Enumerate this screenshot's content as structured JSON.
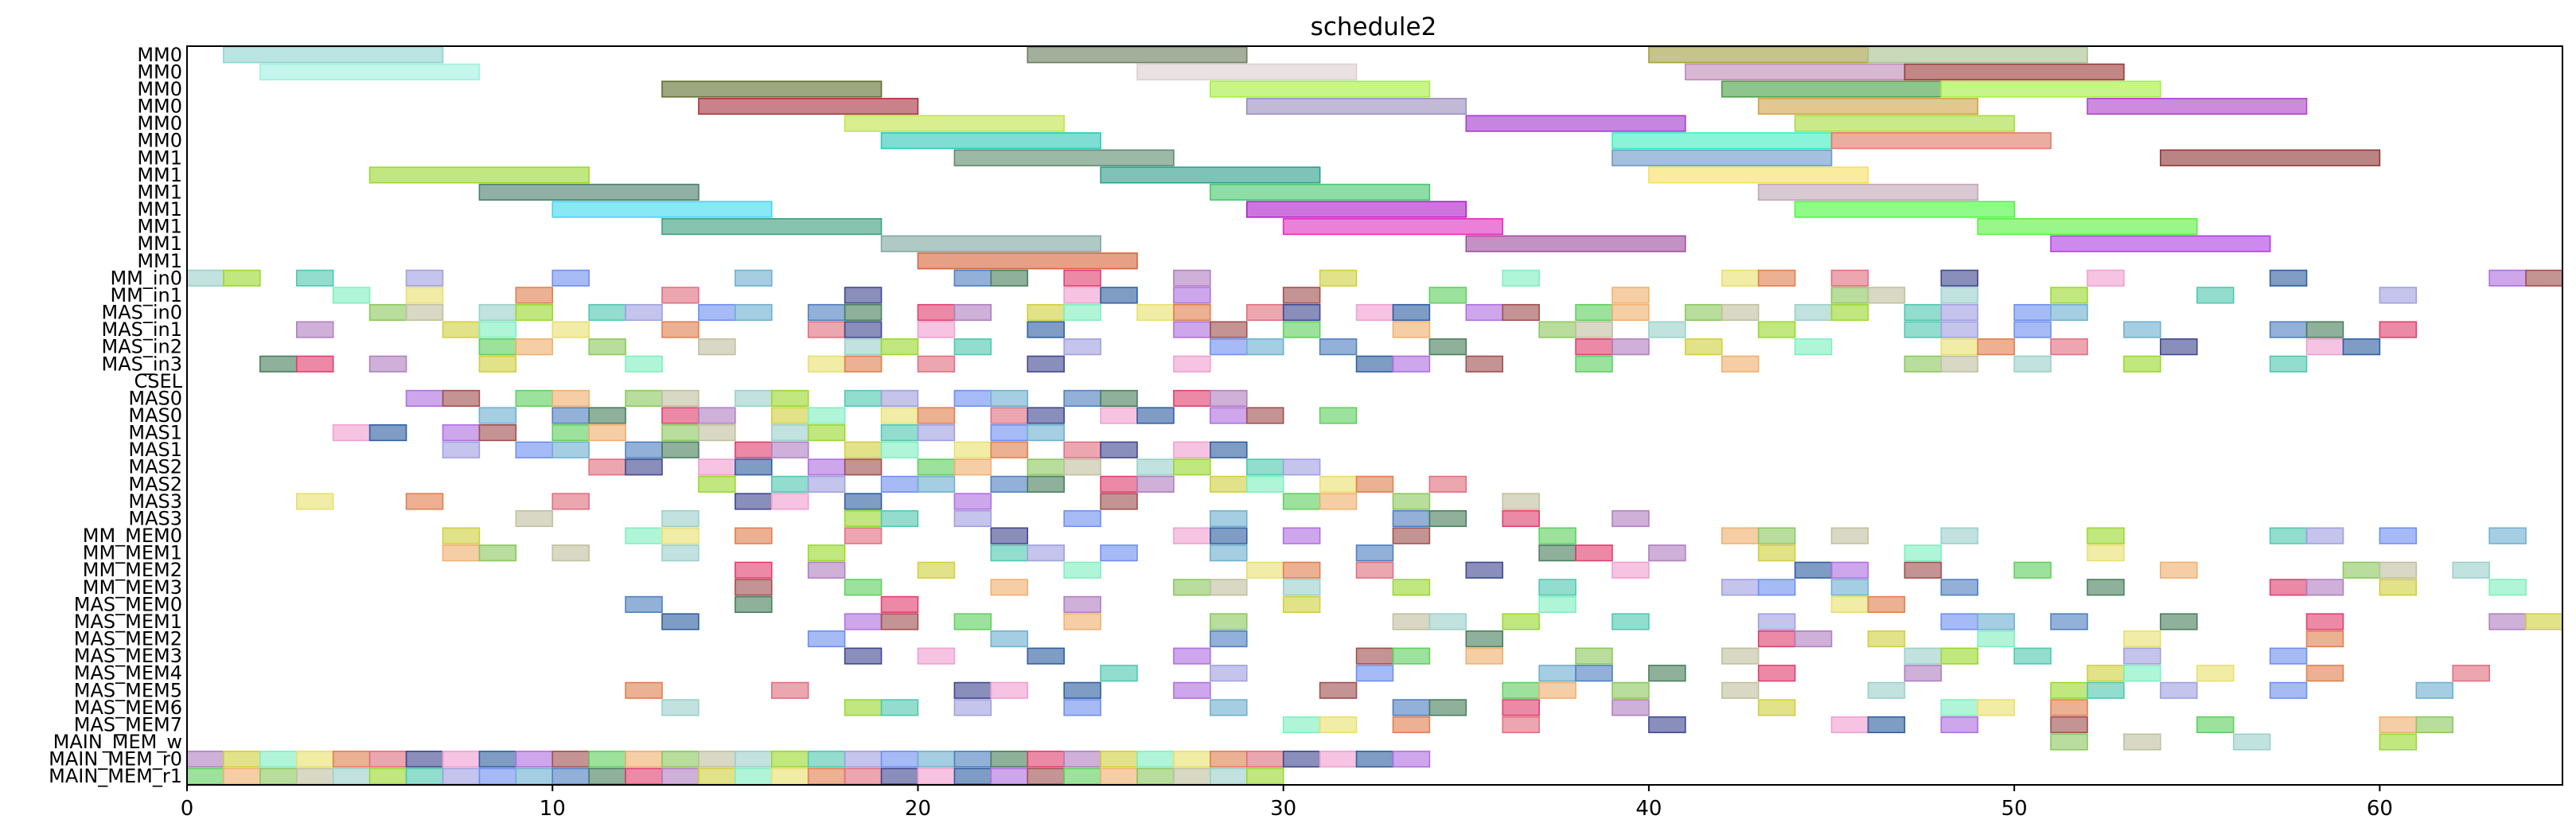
{
  "chart_data": {
    "type": "gantt",
    "title": "schedule2",
    "xlim": [
      0,
      65
    ],
    "x_ticks": [
      0,
      10,
      20,
      30,
      40,
      50,
      60
    ],
    "grid": false,
    "rows": [
      "MM0",
      "MM0",
      "MM0",
      "MM0",
      "MM0",
      "MM0",
      "MM1",
      "MM1",
      "MM1",
      "MM1",
      "MM1",
      "MM1",
      "MM1",
      "MM_in0",
      "MM_in1",
      "MAS_in0",
      "MAS_in1",
      "MAS_in2",
      "MAS_in3",
      "CSEL",
      "MAS0",
      "MAS0",
      "MAS1",
      "MAS1",
      "MAS2",
      "MAS2",
      "MAS3",
      "MAS3",
      "MM_MEM0",
      "MM_MEM1",
      "MM_MEM2",
      "MM_MEM3",
      "MAS_MEM0",
      "MAS_MEM1",
      "MAS_MEM2",
      "MAS_MEM3",
      "MAS_MEM4",
      "MAS_MEM5",
      "MAS_MEM6",
      "MAS_MEM7",
      "MAIN_MEM_w",
      "MAIN_MEM_r0",
      "MAIN_MEM_r1"
    ],
    "tasks": [
      {
        "row": 0,
        "start": 1,
        "end": 7,
        "color": "#8fd3cf"
      },
      {
        "row": 0,
        "start": 23,
        "end": 29,
        "color": "#6b7d5e"
      },
      {
        "row": 0,
        "start": 40,
        "end": 46,
        "color": "#a3a040"
      },
      {
        "row": 0,
        "start": 46,
        "end": 52,
        "color": "#a8c290"
      },
      {
        "row": 1,
        "start": 2,
        "end": 8,
        "color": "#a0f0e0"
      },
      {
        "row": 1,
        "start": 26,
        "end": 32,
        "color": "#ddd0d0"
      },
      {
        "row": 1,
        "start": 41,
        "end": 47,
        "color": "#c08bb8"
      },
      {
        "row": 1,
        "start": 47,
        "end": 53,
        "color": "#9b3c3c"
      },
      {
        "row": 2,
        "start": 13,
        "end": 19,
        "color": "#5f7030"
      },
      {
        "row": 2,
        "start": 28,
        "end": 34,
        "color": "#a6ef40"
      },
      {
        "row": 2,
        "start": 42,
        "end": 48,
        "color": "#4c9f47"
      },
      {
        "row": 2,
        "start": 48,
        "end": 54,
        "color": "#a6ef40"
      },
      {
        "row": 3,
        "start": 14,
        "end": 20,
        "color": "#a83540"
      },
      {
        "row": 3,
        "start": 29,
        "end": 35,
        "color": "#9b8ebd"
      },
      {
        "row": 3,
        "start": 43,
        "end": 49,
        "color": "#d2a448"
      },
      {
        "row": 3,
        "start": 52,
        "end": 58,
        "color": "#b044c8"
      },
      {
        "row": 4,
        "start": 18,
        "end": 24,
        "color": "#c2e44a"
      },
      {
        "row": 4,
        "start": 35,
        "end": 41,
        "color": "#a53ad0"
      },
      {
        "row": 4,
        "start": 44,
        "end": 50,
        "color": "#a8dd40"
      },
      {
        "row": 5,
        "start": 19,
        "end": 25,
        "color": "#30c8b8"
      },
      {
        "row": 5,
        "start": 39,
        "end": 45,
        "color": "#40eec0"
      },
      {
        "row": 5,
        "start": 45,
        "end": 51,
        "color": "#e07a68"
      },
      {
        "row": 6,
        "start": 21,
        "end": 27,
        "color": "#5f8c70"
      },
      {
        "row": 6,
        "start": 39,
        "end": 45,
        "color": "#6c9ac8"
      },
      {
        "row": 6,
        "start": 54,
        "end": 60,
        "color": "#903838"
      },
      {
        "row": 7,
        "start": 5,
        "end": 11,
        "color": "#9bd830"
      },
      {
        "row": 7,
        "start": 25,
        "end": 31,
        "color": "#2e9e8c"
      },
      {
        "row": 7,
        "start": 40,
        "end": 46,
        "color": "#f5e060"
      },
      {
        "row": 8,
        "start": 8,
        "end": 14,
        "color": "#4c7f70"
      },
      {
        "row": 8,
        "start": 28,
        "end": 34,
        "color": "#48c870"
      },
      {
        "row": 8,
        "start": 43,
        "end": 49,
        "color": "#c0a8b8"
      },
      {
        "row": 9,
        "start": 10,
        "end": 16,
        "color": "#40d8f0"
      },
      {
        "row": 9,
        "start": 29,
        "end": 35,
        "color": "#b020c8"
      },
      {
        "row": 9,
        "start": 44,
        "end": 50,
        "color": "#4ef840"
      },
      {
        "row": 10,
        "start": 13,
        "end": 19,
        "color": "#3ea080"
      },
      {
        "row": 10,
        "start": 30,
        "end": 36,
        "color": "#e030c0"
      },
      {
        "row": 10,
        "start": 49,
        "end": 55,
        "color": "#5af040"
      },
      {
        "row": 11,
        "start": 19,
        "end": 25,
        "color": "#80a8a0"
      },
      {
        "row": 11,
        "start": 35,
        "end": 41,
        "color": "#a04ea0"
      },
      {
        "row": 11,
        "start": 51,
        "end": 57,
        "color": "#b040e0"
      },
      {
        "row": 12,
        "start": 20,
        "end": 26,
        "color": "#d8643c"
      }
    ],
    "filler": [
      {
        "row": 13,
        "count": 22,
        "start": 0,
        "gap": 6
      },
      {
        "row": 14,
        "count": 22,
        "start": 4,
        "gap": 6
      },
      {
        "row": 15,
        "count": 32,
        "start": 5,
        "gap": 2
      },
      {
        "row": 16,
        "count": 24,
        "start": 3,
        "gap": 4
      },
      {
        "row": 17,
        "count": 22,
        "start": 8,
        "gap": 4
      },
      {
        "row": 18,
        "count": 20,
        "start": 2,
        "gap": 5
      },
      {
        "row": 20,
        "count": 16,
        "start": 6,
        "gap": 2
      },
      {
        "row": 21,
        "count": 16,
        "start": 8,
        "gap": 2
      },
      {
        "row": 22,
        "count": 14,
        "start": 4,
        "gap": 2
      },
      {
        "row": 23,
        "count": 15,
        "start": 7,
        "gap": 2
      },
      {
        "row": 24,
        "count": 14,
        "start": 11,
        "gap": 2
      },
      {
        "row": 25,
        "count": 14,
        "start": 14,
        "gap": 2
      },
      {
        "row": 26,
        "count": 12,
        "start": 3,
        "gap": 5
      },
      {
        "row": 27,
        "count": 11,
        "start": 9,
        "gap": 5
      },
      {
        "row": 28,
        "count": 24,
        "start": 7,
        "gap": 5
      },
      {
        "row": 29,
        "count": 16,
        "start": 7,
        "gap": 5
      },
      {
        "row": 30,
        "count": 22,
        "start": 15,
        "gap": 5
      },
      {
        "row": 31,
        "count": 18,
        "start": 15,
        "gap": 5
      },
      {
        "row": 32,
        "count": 8,
        "start": 12,
        "gap": 8
      },
      {
        "row": 33,
        "count": 24,
        "start": 13,
        "gap": 5
      },
      {
        "row": 34,
        "count": 10,
        "start": 17,
        "gap": 8
      },
      {
        "row": 35,
        "count": 14,
        "start": 18,
        "gap": 5
      },
      {
        "row": 36,
        "count": 16,
        "start": 25,
        "gap": 5
      },
      {
        "row": 37,
        "count": 22,
        "start": 12,
        "gap": 5
      },
      {
        "row": 38,
        "count": 14,
        "start": 13,
        "gap": 5
      },
      {
        "row": 39,
        "count": 12,
        "start": 30,
        "gap": 5
      },
      {
        "row": 40,
        "count": 10,
        "start": 51,
        "gap": 5
      },
      {
        "row": 41,
        "count": 34,
        "start": 0,
        "gap": 1
      },
      {
        "row": 42,
        "count": 30,
        "start": 0,
        "gap": 1
      }
    ],
    "palette": [
      "#9bd1c9",
      "#4a7f5e",
      "#e07080",
      "#f0b070",
      "#6f8ff0",
      "#80efc0",
      "#b070e0",
      "#9bd830",
      "#e04070",
      "#404890",
      "#8cc860",
      "#70b0d0",
      "#e8e070",
      "#a05050",
      "#50c8b0",
      "#b080c0",
      "#f0a0d0",
      "#c0c0a0",
      "#5080c0",
      "#e08050",
      "#60d060",
      "#a0a0e0",
      "#d0d040",
      "#3060a0"
    ]
  }
}
